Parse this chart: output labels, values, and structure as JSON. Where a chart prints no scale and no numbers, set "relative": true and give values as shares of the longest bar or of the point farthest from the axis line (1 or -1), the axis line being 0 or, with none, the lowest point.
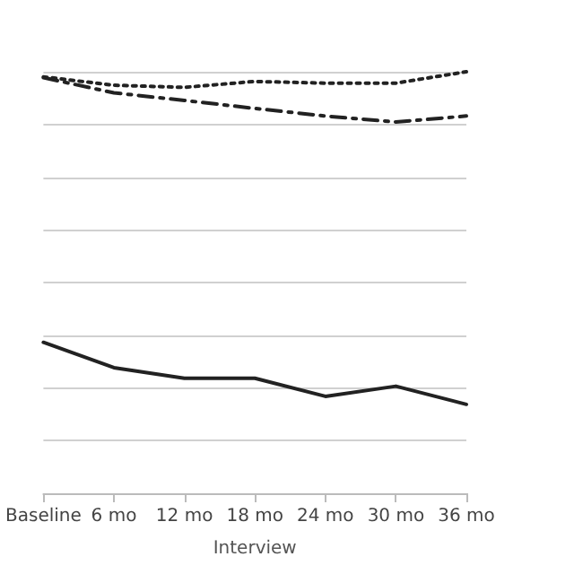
{
  "chart_data": {
    "type": "line",
    "relative": true,
    "xlabel": "Interview",
    "grid": "y",
    "categories": [
      "Baseline",
      "6 mo",
      "12 mo",
      "18 mo",
      "24 mo",
      "30 mo",
      "36 mo"
    ],
    "series": [
      {
        "color": "#222222",
        "line_style": "dashdot",
        "values": [
          0.986,
          0.95,
          0.932,
          0.913,
          0.895,
          0.881,
          0.895
        ]
      },
      {
        "color": "#222222",
        "line_style": "dotted",
        "values": [
          0.988,
          0.968,
          0.963,
          0.977,
          0.973,
          0.973,
          1
        ]
      },
      {
        "color": "#222222",
        "line_style": "solid",
        "values": [
          0.358,
          0.298,
          0.273,
          0.273,
          0.23,
          0.254,
          0.211
        ]
      }
    ]
  }
}
